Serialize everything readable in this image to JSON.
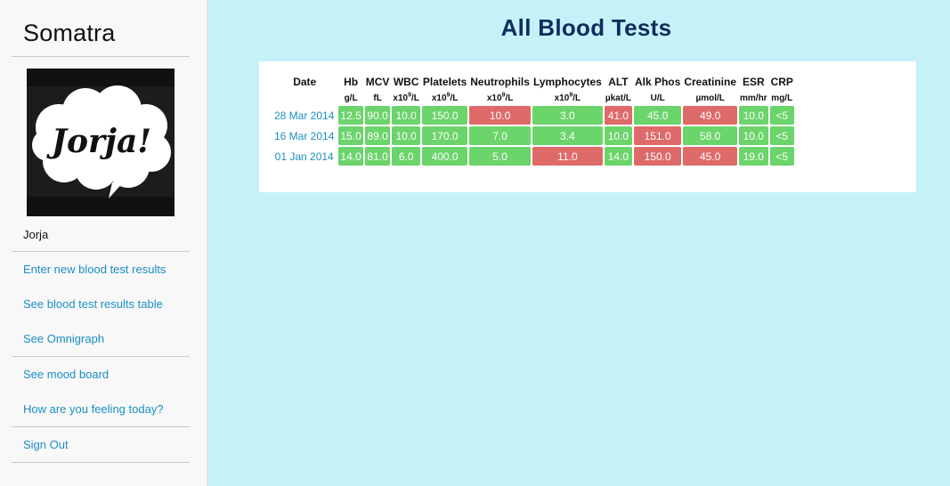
{
  "sidebar": {
    "app_title": "Somatra",
    "avatar_text": "Jorja!",
    "user_name": "Jorja",
    "links": [
      "Enter new blood test results",
      "See blood test results table",
      "See Omnigraph",
      "See mood board",
      "How are you feeling today?",
      "Sign Out"
    ]
  },
  "main": {
    "title": "All Blood Tests",
    "columns": [
      {
        "name": "Date",
        "unit": ""
      },
      {
        "name": "Hb",
        "unit": "g/L"
      },
      {
        "name": "MCV",
        "unit": "fL"
      },
      {
        "name": "WBC",
        "unit": "x10",
        "unit_sup": "9",
        "unit_suffix": "/L"
      },
      {
        "name": "Platelets",
        "unit": "x10",
        "unit_sup": "9",
        "unit_suffix": "/L"
      },
      {
        "name": "Neutrophils",
        "unit": "x10",
        "unit_sup": "9",
        "unit_suffix": "/L"
      },
      {
        "name": "Lymphocytes",
        "unit": "x10",
        "unit_sup": "9",
        "unit_suffix": "/L"
      },
      {
        "name": "ALT",
        "unit": "µkat/L"
      },
      {
        "name": "Alk Phos",
        "unit": "U/L"
      },
      {
        "name": "Creatinine",
        "unit": "µmol/L"
      },
      {
        "name": "ESR",
        "unit": "mm/hr"
      },
      {
        "name": "CRP",
        "unit": "mg/L"
      }
    ],
    "rows": [
      {
        "date": "28 Mar 2014",
        "cells": [
          {
            "value": "12.5",
            "status": "ok"
          },
          {
            "value": "90.0",
            "status": "ok"
          },
          {
            "value": "10.0",
            "status": "ok"
          },
          {
            "value": "150.0",
            "status": "ok"
          },
          {
            "value": "10.0",
            "status": "bad"
          },
          {
            "value": "3.0",
            "status": "ok"
          },
          {
            "value": "41.0",
            "status": "bad"
          },
          {
            "value": "45.0",
            "status": "ok"
          },
          {
            "value": "49.0",
            "status": "bad"
          },
          {
            "value": "10.0",
            "status": "ok"
          },
          {
            "value": "<5",
            "status": "ok"
          }
        ]
      },
      {
        "date": "16 Mar 2014",
        "cells": [
          {
            "value": "15.0",
            "status": "ok"
          },
          {
            "value": "89.0",
            "status": "ok"
          },
          {
            "value": "10.0",
            "status": "ok"
          },
          {
            "value": "170.0",
            "status": "ok"
          },
          {
            "value": "7.0",
            "status": "ok"
          },
          {
            "value": "3.4",
            "status": "ok"
          },
          {
            "value": "10.0",
            "status": "ok"
          },
          {
            "value": "151.0",
            "status": "bad"
          },
          {
            "value": "58.0",
            "status": "ok"
          },
          {
            "value": "10.0",
            "status": "ok"
          },
          {
            "value": "<5",
            "status": "ok"
          }
        ]
      },
      {
        "date": "01 Jan 2014",
        "cells": [
          {
            "value": "14.0",
            "status": "ok"
          },
          {
            "value": "81.0",
            "status": "ok"
          },
          {
            "value": "6.0",
            "status": "ok"
          },
          {
            "value": "400.0",
            "status": "ok"
          },
          {
            "value": "5.0",
            "status": "ok"
          },
          {
            "value": "11.0",
            "status": "bad"
          },
          {
            "value": "14.0",
            "status": "ok"
          },
          {
            "value": "150.0",
            "status": "bad"
          },
          {
            "value": "45.0",
            "status": "bad"
          },
          {
            "value": "19.0",
            "status": "ok"
          },
          {
            "value": "<5",
            "status": "ok"
          }
        ]
      }
    ]
  },
  "colors": {
    "background": "#c5f1f9",
    "sidebar": "#f8f8f8",
    "link": "#1a8fc3",
    "title": "#0f2d5c",
    "normal_cell": "#6bd46b",
    "abnormal_cell": "#de6a69"
  }
}
